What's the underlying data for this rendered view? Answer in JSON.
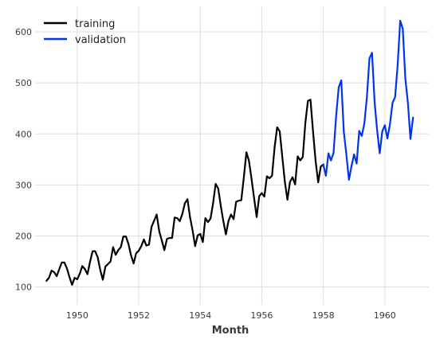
{
  "chart_data": {
    "type": "line",
    "title": "",
    "xlabel": "Month",
    "ylabel": "",
    "grid": true,
    "legend": "top-left",
    "xlim": [
      1948.63,
      1961.43
    ],
    "ylim": [
      65,
      650
    ],
    "xticks": [
      1950,
      1952,
      1954,
      1956,
      1958,
      1960
    ],
    "yticks": [
      100,
      200,
      300,
      400,
      500,
      600
    ],
    "x_start": 1949.0,
    "x_step": 0.0833333,
    "series": [
      {
        "name": "training",
        "color": "#000000",
        "start_index": 0,
        "values": [
          112,
          118,
          132,
          129,
          121,
          135,
          148,
          148,
          136,
          119,
          104,
          118,
          115,
          126,
          141,
          135,
          125,
          149,
          170,
          170,
          158,
          133,
          114,
          140,
          145,
          150,
          178,
          163,
          172,
          178,
          199,
          199,
          184,
          162,
          146,
          166,
          171,
          180,
          193,
          181,
          183,
          218,
          230,
          242,
          209,
          191,
          172,
          194,
          196,
          196,
          236,
          235,
          229,
          243,
          264,
          272,
          237,
          211,
          180,
          201,
          204,
          188,
          235,
          227,
          234,
          264,
          302,
          293,
          259,
          229,
          203,
          229,
          242,
          233,
          267,
          269,
          270,
          315,
          364,
          347,
          312,
          274,
          237,
          278,
          284,
          277,
          317,
          313,
          318,
          374,
          413,
          405,
          355,
          306,
          271,
          306,
          315,
          301,
          356,
          348,
          355,
          422,
          465,
          467,
          404,
          347,
          305,
          336,
          340
        ]
      },
      {
        "name": "validation",
        "color": "#0033ee",
        "start_index": 108,
        "values": [
          340,
          318,
          362,
          348,
          363,
          435,
          491,
          505,
          404,
          359,
          310,
          337,
          360,
          342,
          406,
          396,
          420,
          472,
          548,
          559,
          463,
          407,
          362,
          405,
          417,
          391,
          419,
          461,
          472,
          535,
          622,
          606,
          508,
          461,
          390,
          432
        ]
      }
    ]
  }
}
